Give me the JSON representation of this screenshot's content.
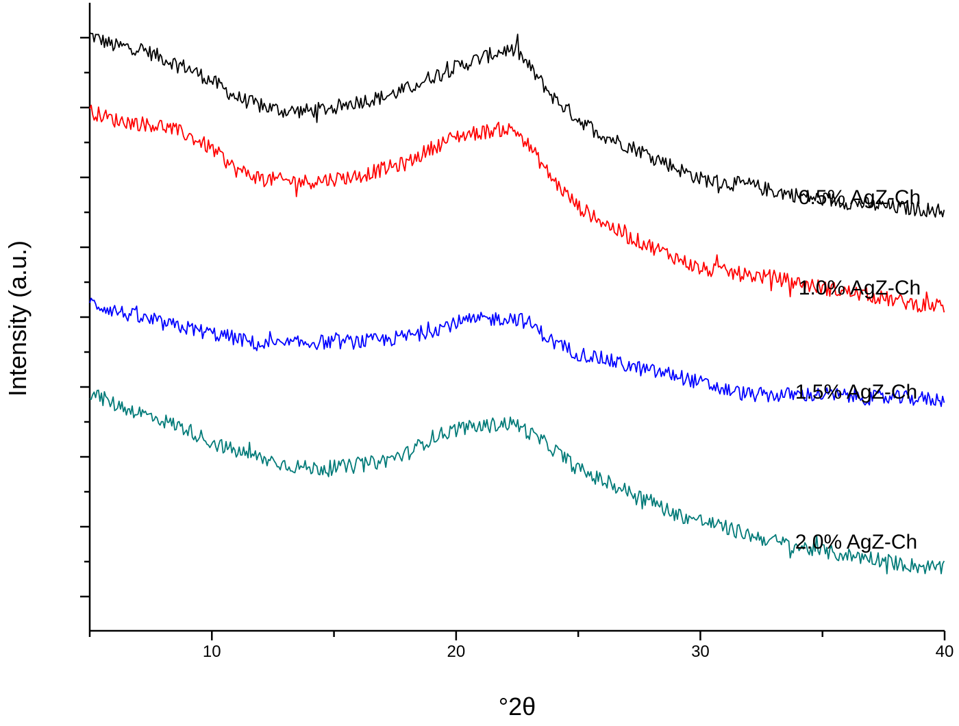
{
  "chart_data": {
    "type": "line",
    "xlabel": "°2θ",
    "ylabel": "Intensity (a.u.)",
    "xlim": [
      5,
      40
    ],
    "x_ticks": [
      "10",
      "20",
      "30",
      "40"
    ],
    "y_tick_labels": "none",
    "grid": false,
    "legend": "none; series names are printed next to each curve on the right",
    "series": [
      {
        "name": "0.5% AgZ-Ch",
        "color": "#000000",
        "points": [
          [
            5,
            1009
          ],
          [
            6,
            993
          ],
          [
            7,
            990
          ],
          [
            8,
            975
          ],
          [
            9,
            961
          ],
          [
            10,
            942
          ],
          [
            11,
            918
          ],
          [
            12,
            905
          ],
          [
            13,
            898
          ],
          [
            14,
            898
          ],
          [
            15,
            903
          ],
          [
            16,
            912
          ],
          [
            17,
            918
          ],
          [
            18,
            930
          ],
          [
            19,
            948
          ],
          [
            20,
            962
          ],
          [
            21,
            975
          ],
          [
            22,
            987
          ],
          [
            22.5,
            985
          ],
          [
            23,
            962
          ],
          [
            24,
            917
          ],
          [
            25,
            886
          ],
          [
            26,
            863
          ],
          [
            27,
            848
          ],
          [
            28,
            833
          ],
          [
            29,
            815
          ],
          [
            30,
            799
          ],
          [
            31,
            793
          ],
          [
            32,
            790
          ],
          [
            33,
            781
          ],
          [
            34,
            775
          ],
          [
            35,
            769
          ],
          [
            36,
            765
          ],
          [
            37,
            761
          ],
          [
            38,
            757
          ],
          [
            39,
            755
          ],
          [
            40,
            752
          ]
        ]
      },
      {
        "name": "1.0% AgZ-Ch",
        "color": "#ff0000",
        "points": [
          [
            5,
            898
          ],
          [
            6,
            885
          ],
          [
            7,
            880
          ],
          [
            8,
            876
          ],
          [
            9,
            863
          ],
          [
            10,
            843
          ],
          [
            11,
            812
          ],
          [
            12,
            800
          ],
          [
            13,
            796
          ],
          [
            14,
            795
          ],
          [
            15,
            799
          ],
          [
            16,
            803
          ],
          [
            17,
            813
          ],
          [
            18,
            822
          ],
          [
            19,
            844
          ],
          [
            20,
            861
          ],
          [
            21,
            867
          ],
          [
            22,
            872
          ],
          [
            22.5,
            868
          ],
          [
            23,
            846
          ],
          [
            24,
            796
          ],
          [
            25,
            758
          ],
          [
            26,
            736
          ],
          [
            27,
            715
          ],
          [
            28,
            700
          ],
          [
            29,
            684
          ],
          [
            30,
            667
          ],
          [
            31,
            663
          ],
          [
            32,
            658
          ],
          [
            33,
            655
          ],
          [
            34,
            647
          ],
          [
            35,
            640
          ],
          [
            36,
            634
          ],
          [
            37,
            628
          ],
          [
            38,
            621
          ],
          [
            39,
            615
          ],
          [
            40,
            613
          ]
        ]
      },
      {
        "name": "1.5% AgZ-Ch",
        "color": "#0000ff",
        "points": [
          [
            5,
            618
          ],
          [
            6,
            607
          ],
          [
            7,
            596
          ],
          [
            8,
            587
          ],
          [
            9,
            581
          ],
          [
            10,
            573
          ],
          [
            11,
            566
          ],
          [
            12,
            556
          ],
          [
            13,
            557
          ],
          [
            14,
            560
          ],
          [
            15,
            561
          ],
          [
            16,
            561
          ],
          [
            17,
            563
          ],
          [
            18,
            569
          ],
          [
            19,
            578
          ],
          [
            20,
            589
          ],
          [
            21,
            593
          ],
          [
            22,
            596
          ],
          [
            22.5,
            595
          ],
          [
            23,
            588
          ],
          [
            24,
            560
          ],
          [
            25,
            544
          ],
          [
            26,
            536
          ],
          [
            27,
            526
          ],
          [
            28,
            518
          ],
          [
            29,
            512
          ],
          [
            30,
            501
          ],
          [
            31,
            491
          ],
          [
            32,
            484
          ],
          [
            33,
            483
          ],
          [
            34,
            484
          ],
          [
            35,
            484
          ],
          [
            36,
            482
          ],
          [
            37,
            479
          ],
          [
            38,
            479
          ],
          [
            39,
            478
          ],
          [
            40,
            476
          ]
        ]
      },
      {
        "name": "2.0% AgZ-Ch",
        "color": "#007a78",
        "points": [
          [
            5,
            488
          ],
          [
            6,
            470
          ],
          [
            7,
            458
          ],
          [
            8,
            446
          ],
          [
            9,
            433
          ],
          [
            10,
            414
          ],
          [
            11,
            401
          ],
          [
            12,
            391
          ],
          [
            13,
            382
          ],
          [
            14,
            376
          ],
          [
            15,
            377
          ],
          [
            16,
            380
          ],
          [
            17,
            387
          ],
          [
            18,
            398
          ],
          [
            19,
            421
          ],
          [
            20,
            433
          ],
          [
            21,
            437
          ],
          [
            22,
            442
          ],
          [
            22.5,
            440
          ],
          [
            23,
            428
          ],
          [
            24,
            404
          ],
          [
            25,
            375
          ],
          [
            26,
            358
          ],
          [
            27,
            343
          ],
          [
            28,
            328
          ],
          [
            29,
            309
          ],
          [
            30,
            300
          ],
          [
            31,
            290
          ],
          [
            32,
            279
          ],
          [
            33,
            270
          ],
          [
            34,
            262
          ],
          [
            35,
            255
          ],
          [
            36,
            249
          ],
          [
            37,
            246
          ],
          [
            38,
            238
          ],
          [
            39,
            233
          ],
          [
            40,
            230
          ]
        ]
      }
    ]
  }
}
